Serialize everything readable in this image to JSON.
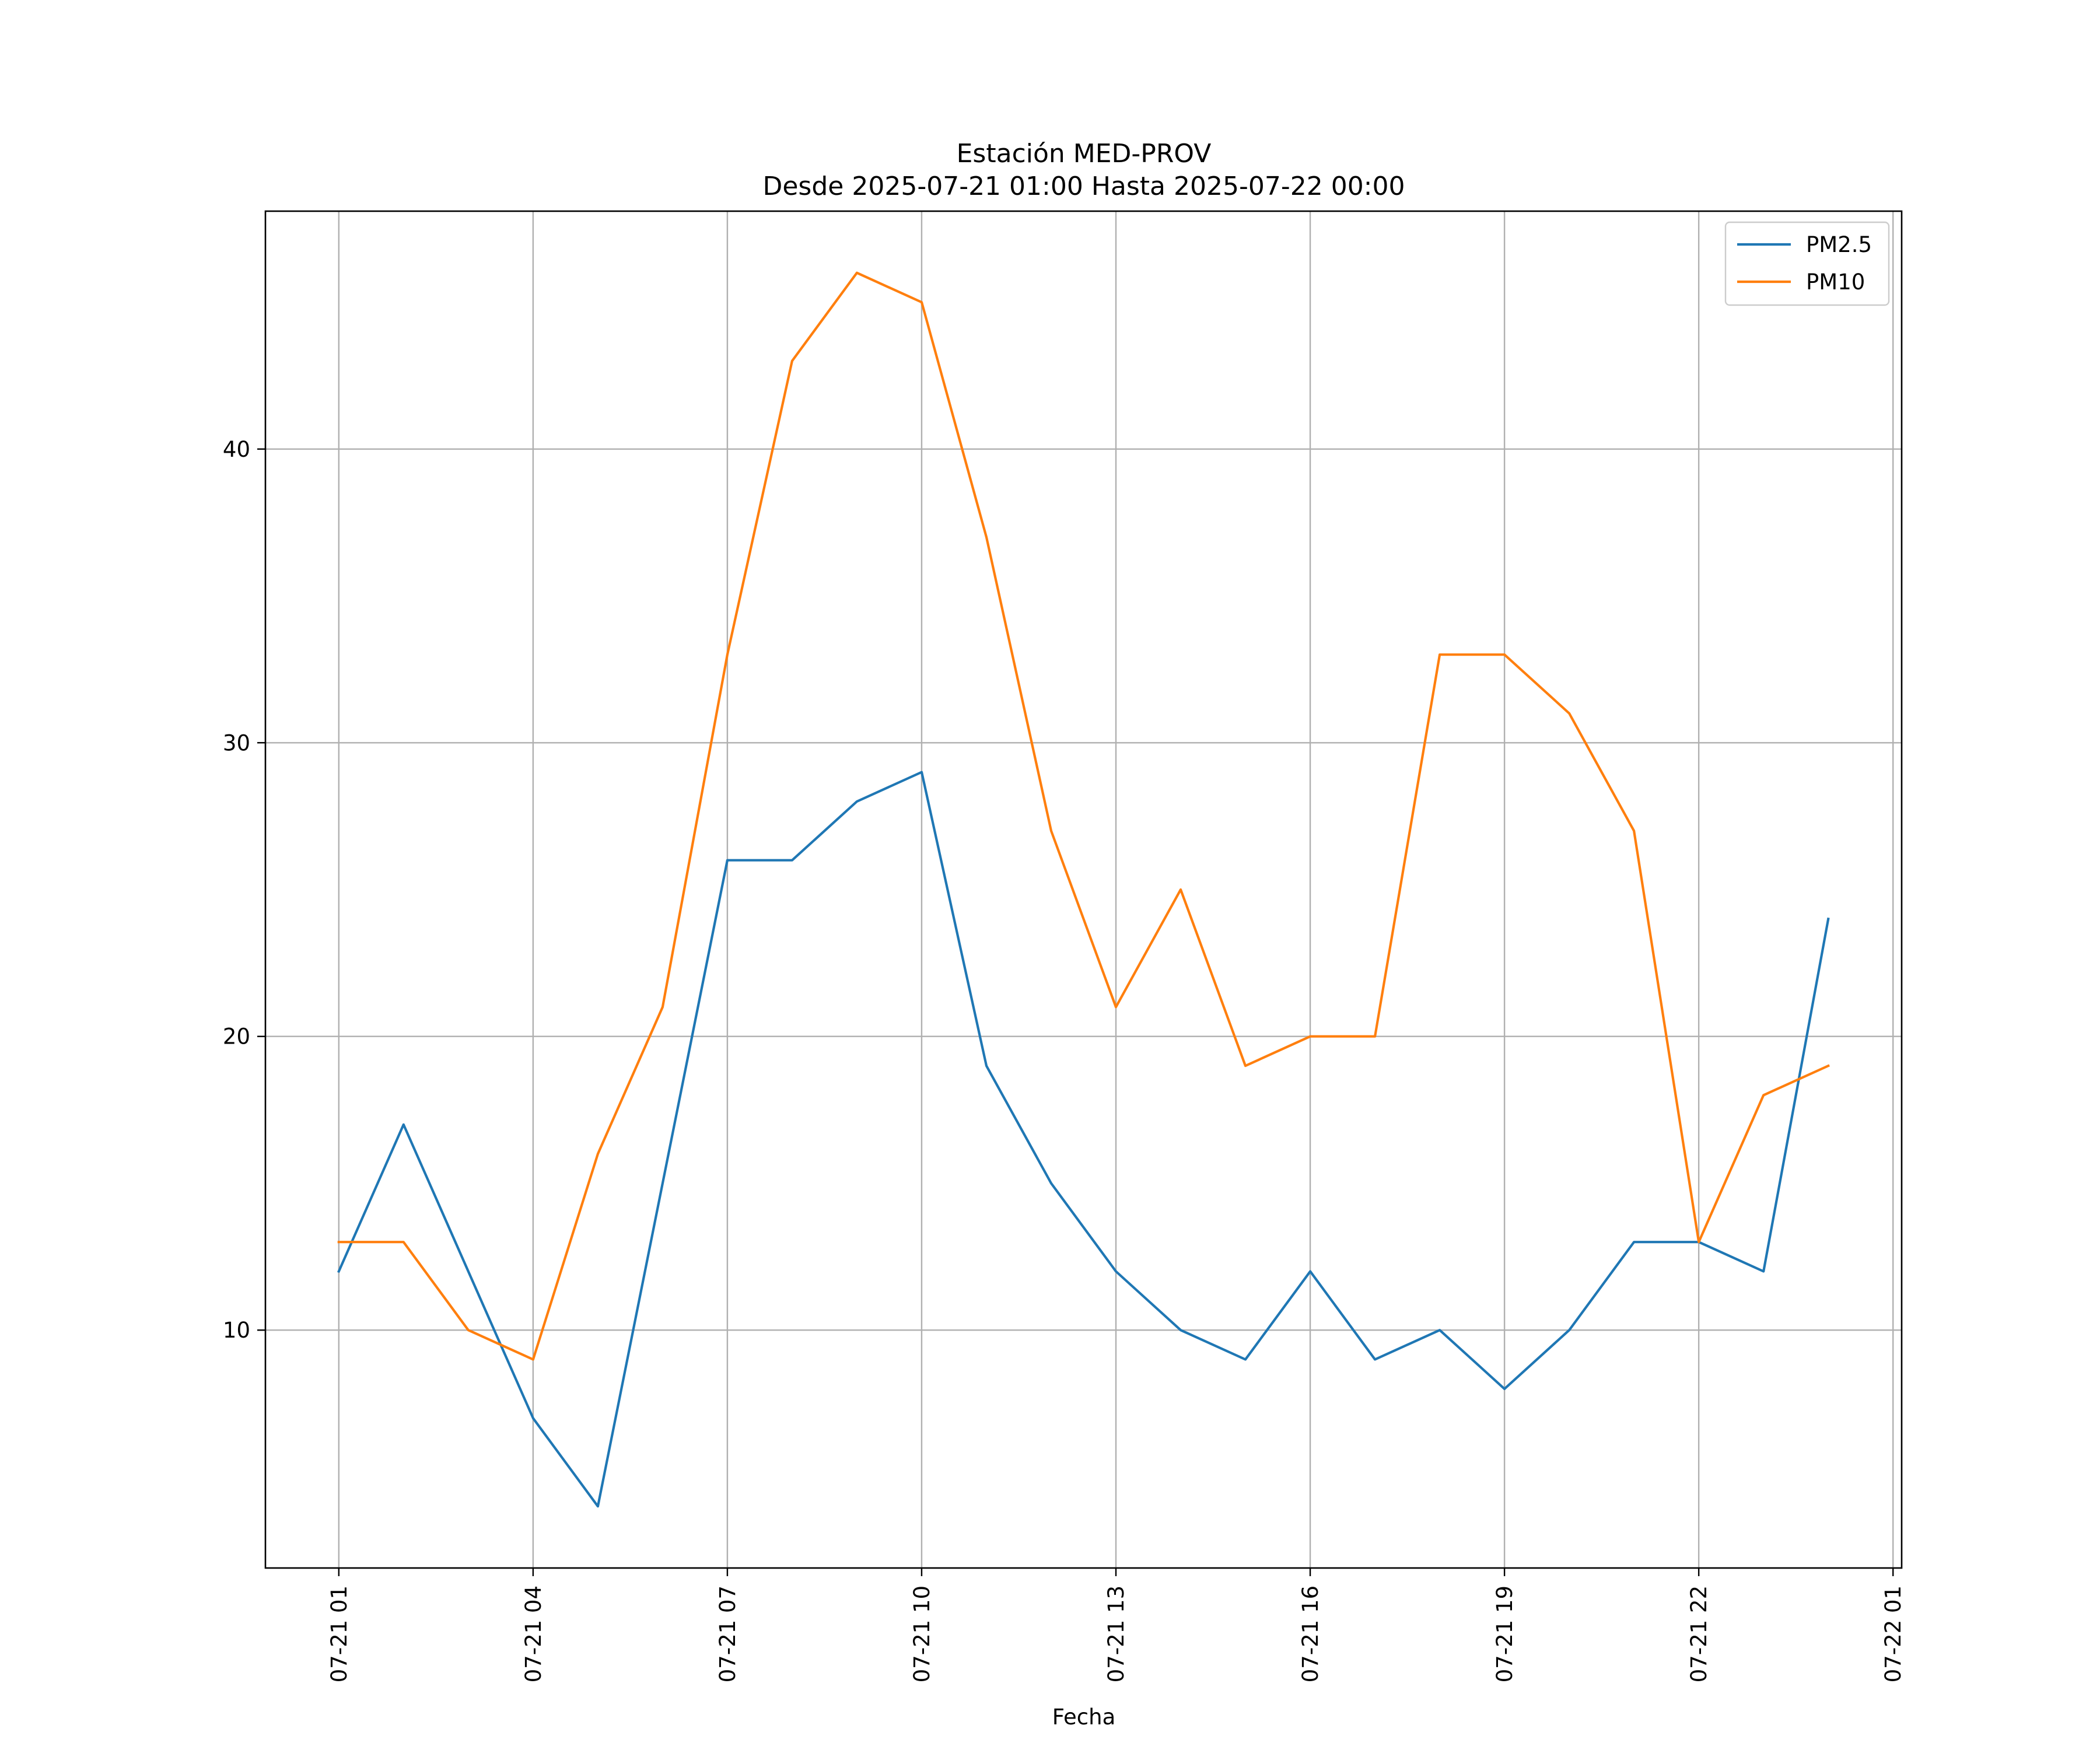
{
  "chart_data": {
    "type": "line",
    "title": [
      "Estación MED-PROV",
      "Desde 2025-07-21 01:00 Hasta 2025-07-22 00:00"
    ],
    "xlabel": "Fecha",
    "ylabel": "",
    "x_type": "datetime",
    "x": [
      "2025-07-21 01:00",
      "2025-07-21 02:00",
      "2025-07-21 03:00",
      "2025-07-21 04:00",
      "2025-07-21 05:00",
      "2025-07-21 06:00",
      "2025-07-21 07:00",
      "2025-07-21 08:00",
      "2025-07-21 09:00",
      "2025-07-21 10:00",
      "2025-07-21 11:00",
      "2025-07-21 12:00",
      "2025-07-21 13:00",
      "2025-07-21 14:00",
      "2025-07-21 15:00",
      "2025-07-21 16:00",
      "2025-07-21 17:00",
      "2025-07-21 18:00",
      "2025-07-21 19:00",
      "2025-07-21 20:00",
      "2025-07-21 21:00",
      "2025-07-21 22:00",
      "2025-07-21 23:00",
      "2025-07-22 00:00"
    ],
    "xlim": [
      "2025-07-20 23:52",
      "2025-07-22 01:08"
    ],
    "x_ticks": [
      {
        "x": "2025-07-21 01:00",
        "label": "07-21 01"
      },
      {
        "x": "2025-07-21 04:00",
        "label": "07-21 04"
      },
      {
        "x": "2025-07-21 07:00",
        "label": "07-21 07"
      },
      {
        "x": "2025-07-21 10:00",
        "label": "07-21 10"
      },
      {
        "x": "2025-07-21 13:00",
        "label": "07-21 13"
      },
      {
        "x": "2025-07-21 16:00",
        "label": "07-21 16"
      },
      {
        "x": "2025-07-21 19:00",
        "label": "07-21 19"
      },
      {
        "x": "2025-07-21 22:00",
        "label": "07-21 22"
      },
      {
        "x": "2025-07-22 01:00",
        "label": "07-22 01"
      }
    ],
    "y_ticks": [
      10,
      20,
      30,
      40
    ],
    "ylim": [
      1.9,
      48.1
    ],
    "grid": true,
    "legend_position": "top-right",
    "series": [
      {
        "name": "PM2.5",
        "color": "#1f77b4",
        "values": [
          12,
          17,
          12,
          7,
          4,
          15,
          26,
          26,
          28,
          29,
          19,
          15,
          12,
          10,
          9,
          12,
          9,
          10,
          8,
          10,
          13,
          13,
          12,
          24
        ]
      },
      {
        "name": "PM10",
        "color": "#ff7f0e",
        "values": [
          13,
          13,
          10,
          9,
          16,
          21,
          33,
          43,
          46,
          45,
          37,
          27,
          21,
          25,
          19,
          20,
          20,
          33,
          33,
          31,
          27,
          13,
          18,
          19
        ]
      }
    ]
  }
}
